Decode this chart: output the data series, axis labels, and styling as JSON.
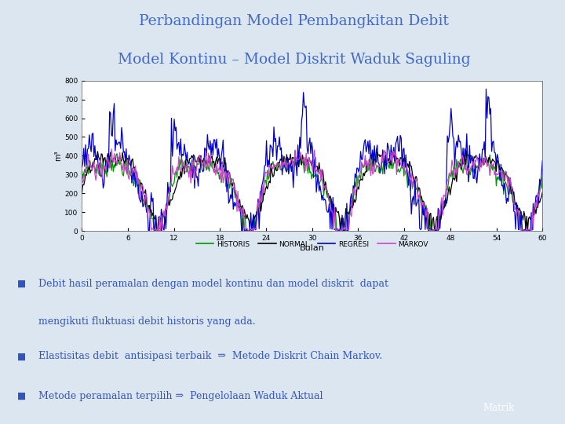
{
  "title_line1": "Perbandingan Model Pembangkitan Debit",
  "title_line2": "Model Kontinu – Model Diskrit Waduk Saguling",
  "title_color": "#4169c8",
  "bg_color": "#ffffff",
  "slide_bg": "#dce6f1",
  "plot_bg": "#ffffff",
  "xlabel": "Bulan",
  "ylabel": "m³",
  "ylim": [
    0,
    800
  ],
  "xlim": [
    0,
    60
  ],
  "xticks": [
    0,
    6,
    12,
    18,
    24,
    30,
    36,
    42,
    48,
    54,
    60
  ],
  "yticks": [
    0,
    100,
    200,
    300,
    400,
    500,
    600,
    700,
    800
  ],
  "legend_labels": [
    "HISTORIS",
    "NORMAL",
    "REGRESI",
    "MARKOV"
  ],
  "legend_colors": [
    "#009900",
    "#000000",
    "#0000cc",
    "#cc44cc"
  ],
  "bullet_color": "#3355bb",
  "bullets_line1": "Debit hasil peramalan dengan model kontinu dan model diskrit  dapat",
  "bullets_line2": "mengikuti fluktuasi debit historis yang ada.",
  "bullet2": "Elastisitas debit  antisipasi terbaik  ⇒  Metode Diskrit Chain Markov.",
  "bullet3": "Metode peramalan terpilih ⇒  Pengelolaan Waduk Aktual",
  "matrik_bg": "#3355cc",
  "matrik_text": "Matrik",
  "sq1_color": "#f5c000",
  "sq2_color": "#dd3333",
  "sq3_color": "#3355cc"
}
